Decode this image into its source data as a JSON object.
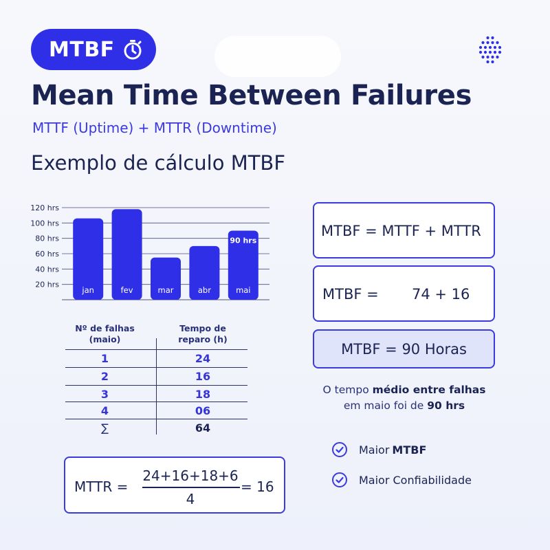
{
  "header": {
    "badge_label": "MTBF",
    "title": "Mean Time Between Failures",
    "subtitle": "MTTF (Uptime) + MTTR (Downtime)",
    "section_title": "Exemplo de cálculo MTBF"
  },
  "chart_data": {
    "type": "bar",
    "categories": [
      "jan",
      "fev",
      "mar",
      "abr",
      "mai"
    ],
    "values": [
      106,
      118,
      55,
      70,
      90
    ],
    "ylim": [
      0,
      120
    ],
    "yticks": [
      20,
      40,
      60,
      80,
      100,
      120
    ],
    "ytick_labels": [
      "20 hrs",
      "40 hrs",
      "60 hrs",
      "80 hrs",
      "100 hrs",
      "120 hrs"
    ],
    "data_labels": [
      "",
      "",
      "",
      "",
      "90 hrs"
    ],
    "bar_color": "#2f2fe8",
    "grid": true
  },
  "table": {
    "headers": [
      "Nº de falhas\n(maio)",
      "Tempo de\nreparo (h)"
    ],
    "header_falhas": [
      "Nº de falhas",
      "(maio)"
    ],
    "header_tempo": [
      "Tempo de",
      "reparo (h)"
    ],
    "rows": [
      [
        "1",
        "24"
      ],
      [
        "2",
        "16"
      ],
      [
        "3",
        "18"
      ],
      [
        "4",
        "06"
      ],
      [
        "∑",
        "64"
      ]
    ]
  },
  "mttr_formula": {
    "label": "MTTR =",
    "numerator": "24+16+18+6",
    "denominator": "4",
    "result": "= 16"
  },
  "mtbf_formulas": {
    "formula": "MTBF = MTTF + MTTR",
    "substitution_left": "MTBF =",
    "substitution_right": "74 + 16",
    "result": "MTBF = 90 Horas"
  },
  "summary": {
    "part1": "O tempo ",
    "bold1": "médio entre falhas",
    "part2": "em maio foi de ",
    "bold2": "90 hrs"
  },
  "checks": [
    {
      "prefix": "Maior ",
      "bold": "MTBF"
    },
    {
      "prefix": "Maior Confiabilidade",
      "bold": ""
    }
  ],
  "colors": {
    "accent": "#2f2fe8",
    "dark": "#1b2352",
    "highlight_box": "#dfe4fb"
  },
  "icons": [
    "stopwatch-icon",
    "dotted-sphere-logo-icon",
    "check-circle-icon"
  ]
}
